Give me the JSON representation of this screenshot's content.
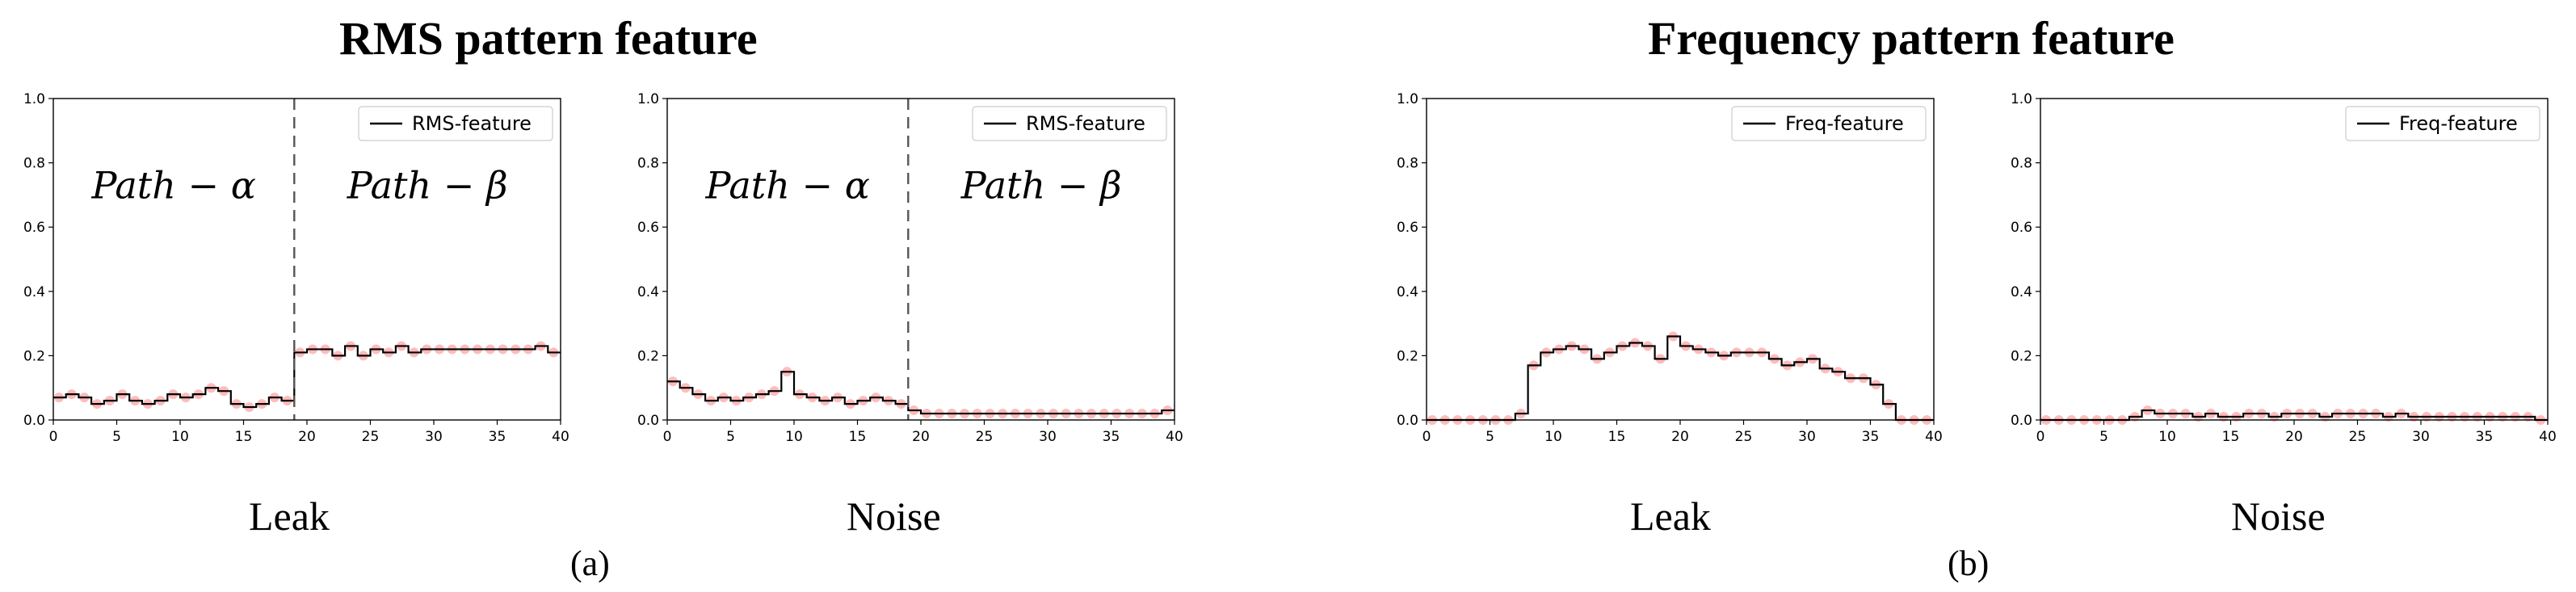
{
  "figure": {
    "group_a_title": "RMS pattern feature",
    "group_b_title": "Frequency pattern feature",
    "subfigure_a_label": "(a)",
    "subfigure_b_label": "(b)"
  },
  "colors": {
    "series": "#000000",
    "observed": "#ff3b3b",
    "boundary": "#555555"
  },
  "chart_data": [
    {
      "type": "line",
      "caption": "Leak",
      "legend": "RMS-feature",
      "legend_position": "upper-right",
      "xlim": [
        0,
        40
      ],
      "ylim": [
        0,
        1.0
      ],
      "xticks": [
        0,
        5,
        10,
        15,
        20,
        25,
        30,
        35,
        40
      ],
      "yticks": [
        0.0,
        0.2,
        0.4,
        0.6,
        0.8,
        1.0
      ],
      "boundary_x": 19,
      "region_labels": [
        "Path − α",
        "Path − β"
      ],
      "x": [
        0,
        1,
        2,
        3,
        4,
        5,
        6,
        7,
        8,
        9,
        10,
        11,
        12,
        13,
        14,
        15,
        16,
        17,
        18,
        19,
        20,
        21,
        22,
        23,
        24,
        25,
        26,
        27,
        28,
        29,
        30,
        31,
        32,
        33,
        34,
        35,
        36,
        37,
        38,
        39
      ],
      "values": [
        0.07,
        0.08,
        0.07,
        0.05,
        0.06,
        0.08,
        0.06,
        0.05,
        0.06,
        0.08,
        0.07,
        0.08,
        0.1,
        0.09,
        0.05,
        0.04,
        0.05,
        0.07,
        0.06,
        0.21,
        0.22,
        0.22,
        0.2,
        0.23,
        0.2,
        0.22,
        0.21,
        0.23,
        0.21,
        0.22,
        0.22,
        0.22,
        0.22,
        0.22,
        0.22,
        0.22,
        0.22,
        0.22,
        0.23,
        0.21
      ]
    },
    {
      "type": "line",
      "caption": "Noise",
      "legend": "RMS-feature",
      "legend_position": "upper-right",
      "xlim": [
        0,
        40
      ],
      "ylim": [
        0,
        1.0
      ],
      "xticks": [
        0,
        5,
        10,
        15,
        20,
        25,
        30,
        35,
        40
      ],
      "yticks": [
        0.0,
        0.2,
        0.4,
        0.6,
        0.8,
        1.0
      ],
      "boundary_x": 19,
      "region_labels": [
        "Path − α",
        "Path − β"
      ],
      "x": [
        0,
        1,
        2,
        3,
        4,
        5,
        6,
        7,
        8,
        9,
        10,
        11,
        12,
        13,
        14,
        15,
        16,
        17,
        18,
        19,
        20,
        21,
        22,
        23,
        24,
        25,
        26,
        27,
        28,
        29,
        30,
        31,
        32,
        33,
        34,
        35,
        36,
        37,
        38,
        39
      ],
      "values": [
        0.12,
        0.1,
        0.08,
        0.06,
        0.07,
        0.06,
        0.07,
        0.08,
        0.09,
        0.15,
        0.08,
        0.07,
        0.06,
        0.07,
        0.05,
        0.06,
        0.07,
        0.06,
        0.05,
        0.03,
        0.02,
        0.02,
        0.02,
        0.02,
        0.02,
        0.02,
        0.02,
        0.02,
        0.02,
        0.02,
        0.02,
        0.02,
        0.02,
        0.02,
        0.02,
        0.02,
        0.02,
        0.02,
        0.02,
        0.03
      ]
    },
    {
      "type": "line",
      "caption": "Leak",
      "legend": "Freq-feature",
      "legend_position": "upper-right",
      "xlim": [
        0,
        40
      ],
      "ylim": [
        0,
        1.0
      ],
      "xticks": [
        0,
        5,
        10,
        15,
        20,
        25,
        30,
        35,
        40
      ],
      "yticks": [
        0.0,
        0.2,
        0.4,
        0.6,
        0.8,
        1.0
      ],
      "x": [
        0,
        1,
        2,
        3,
        4,
        5,
        6,
        7,
        8,
        9,
        10,
        11,
        12,
        13,
        14,
        15,
        16,
        17,
        18,
        19,
        20,
        21,
        22,
        23,
        24,
        25,
        26,
        27,
        28,
        29,
        30,
        31,
        32,
        33,
        34,
        35,
        36,
        37,
        38,
        39
      ],
      "values": [
        0.0,
        0.0,
        0.0,
        0.0,
        0.0,
        0.0,
        0.0,
        0.02,
        0.17,
        0.21,
        0.22,
        0.23,
        0.22,
        0.19,
        0.21,
        0.23,
        0.24,
        0.23,
        0.19,
        0.26,
        0.23,
        0.22,
        0.21,
        0.2,
        0.21,
        0.21,
        0.21,
        0.19,
        0.17,
        0.18,
        0.19,
        0.16,
        0.15,
        0.13,
        0.13,
        0.11,
        0.05,
        0.0,
        0.0,
        0.0
      ]
    },
    {
      "type": "line",
      "caption": "Noise",
      "legend": "Freq-feature",
      "legend_position": "upper-right",
      "xlim": [
        0,
        40
      ],
      "ylim": [
        0,
        1.0
      ],
      "xticks": [
        0,
        5,
        10,
        15,
        20,
        25,
        30,
        35,
        40
      ],
      "yticks": [
        0.0,
        0.2,
        0.4,
        0.6,
        0.8,
        1.0
      ],
      "x": [
        0,
        1,
        2,
        3,
        4,
        5,
        6,
        7,
        8,
        9,
        10,
        11,
        12,
        13,
        14,
        15,
        16,
        17,
        18,
        19,
        20,
        21,
        22,
        23,
        24,
        25,
        26,
        27,
        28,
        29,
        30,
        31,
        32,
        33,
        34,
        35,
        36,
        37,
        38,
        39
      ],
      "values": [
        0.0,
        0.0,
        0.0,
        0.0,
        0.0,
        0.0,
        0.0,
        0.01,
        0.03,
        0.02,
        0.02,
        0.02,
        0.01,
        0.02,
        0.01,
        0.01,
        0.02,
        0.02,
        0.01,
        0.02,
        0.02,
        0.02,
        0.01,
        0.02,
        0.02,
        0.02,
        0.02,
        0.01,
        0.02,
        0.01,
        0.01,
        0.01,
        0.01,
        0.01,
        0.01,
        0.01,
        0.01,
        0.01,
        0.01,
        0.0
      ]
    }
  ]
}
